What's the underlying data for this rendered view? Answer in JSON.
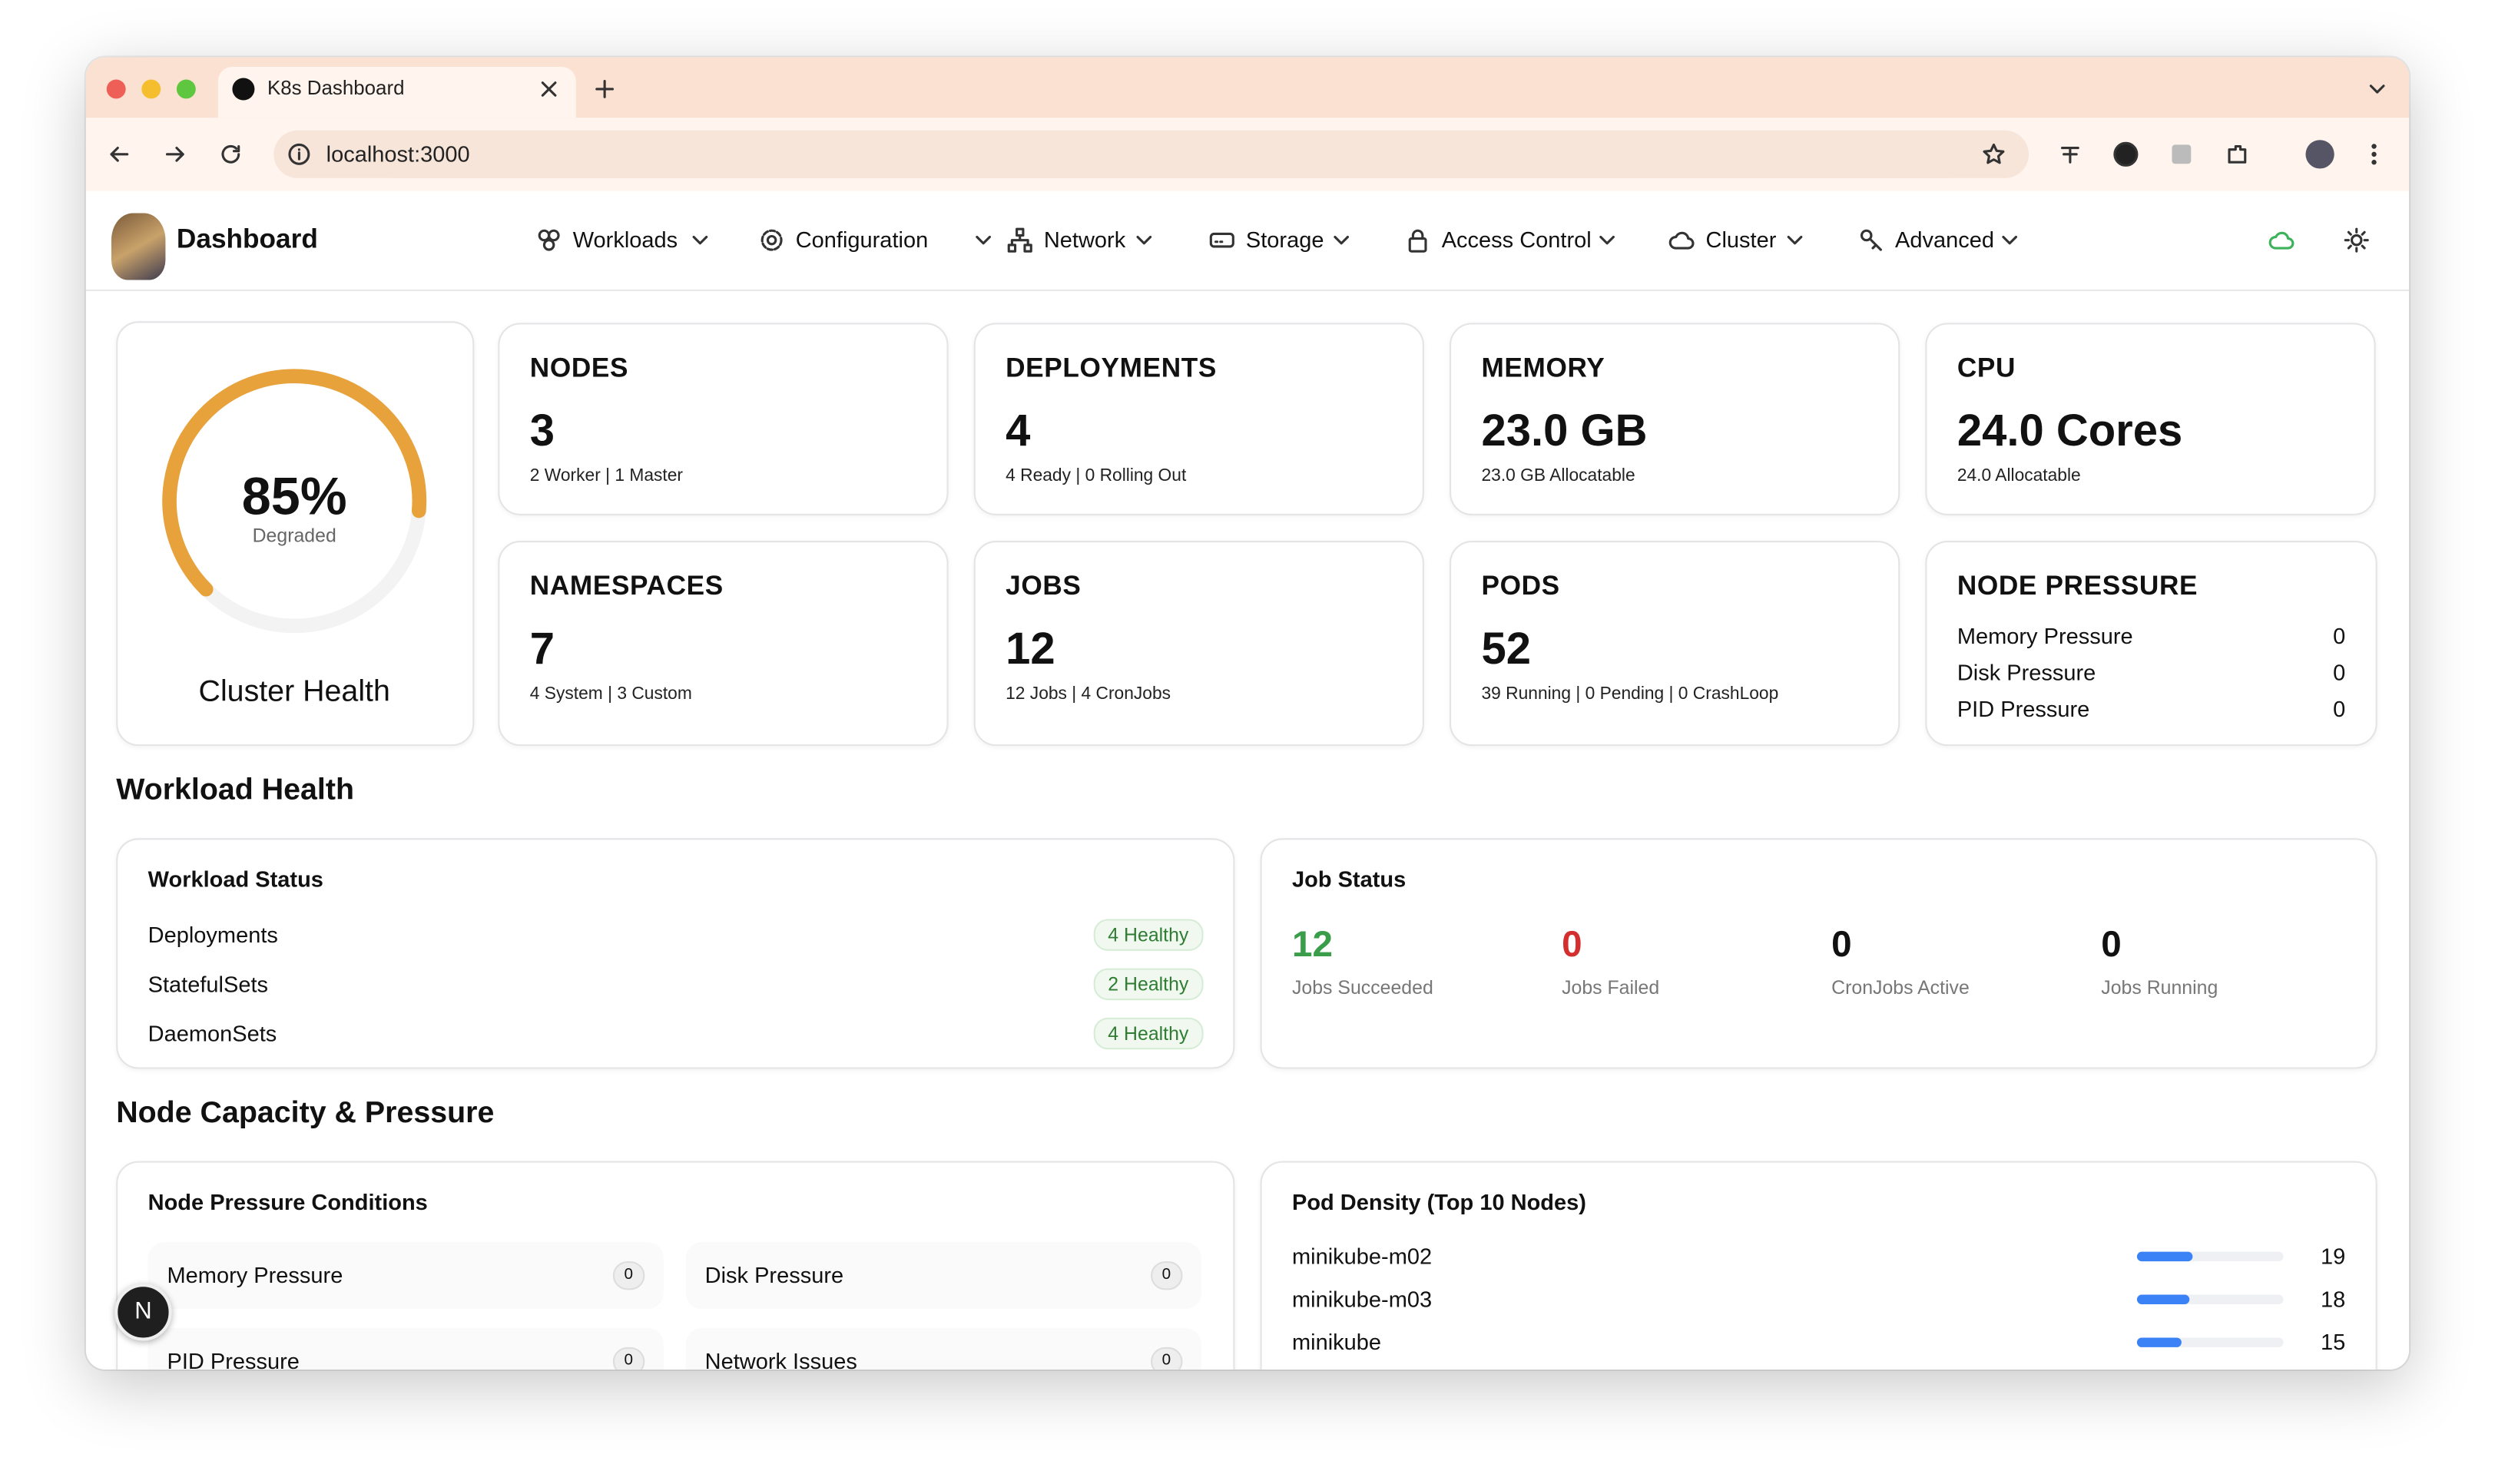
{
  "browser": {
    "tab_title": "K8s Dashboard",
    "url": "localhost:3000"
  },
  "nav": {
    "brand": "Dashboard",
    "menus": [
      "Workloads",
      "Configuration",
      "Network",
      "Storage",
      "Access Control",
      "Cluster",
      "Advanced"
    ]
  },
  "cluster_health": {
    "value": 85,
    "label": "85%",
    "status": "Degraded",
    "title": "Cluster Health"
  },
  "stats": [
    {
      "title": "NODES",
      "value": "3",
      "detail": "2 Worker | 1 Master"
    },
    {
      "title": "DEPLOYMENTS",
      "value": "4",
      "detail": "4 Ready | 0 Rolling Out"
    },
    {
      "title": "MEMORY",
      "value": "23.0 GB",
      "detail": "23.0 GB Allocatable"
    },
    {
      "title": "CPU",
      "value": "24.0 Cores",
      "detail": "24.0 Allocatable"
    },
    {
      "title": "NAMESPACES",
      "value": "7",
      "detail": "4 System | 3 Custom"
    },
    {
      "title": "JOBS",
      "value": "12",
      "detail": "12 Jobs | 4 CronJobs"
    },
    {
      "title": "PODS",
      "value": "52",
      "detail": "39 Running | 0 Pending | 0 CrashLoop"
    }
  ],
  "node_pressure_card": {
    "title": "NODE PRESSURE",
    "rows": [
      {
        "name": "Memory Pressure",
        "value": "0"
      },
      {
        "name": "Disk Pressure",
        "value": "0"
      },
      {
        "name": "PID Pressure",
        "value": "0"
      }
    ]
  },
  "workload_health": {
    "heading": "Workload Health",
    "workload_status": {
      "title": "Workload Status",
      "rows": [
        {
          "name": "Deployments",
          "badge": "4 Healthy"
        },
        {
          "name": "StatefulSets",
          "badge": "2 Healthy"
        },
        {
          "name": "DaemonSets",
          "badge": "4 Healthy"
        }
      ]
    },
    "job_status": {
      "title": "Job Status",
      "items": [
        {
          "value": "12",
          "label": "Jobs Succeeded"
        },
        {
          "value": "0",
          "label": "Jobs Failed"
        },
        {
          "value": "0",
          "label": "CronJobs Active"
        },
        {
          "value": "0",
          "label": "Jobs Running"
        }
      ]
    }
  },
  "node_capacity": {
    "heading": "Node Capacity & Pressure",
    "conditions": {
      "title": "Node Pressure Conditions",
      "items": [
        {
          "name": "Memory Pressure",
          "count": "0"
        },
        {
          "name": "Disk Pressure",
          "count": "0"
        },
        {
          "name": "PID Pressure",
          "count": "0"
        },
        {
          "name": "Network Issues",
          "count": "0"
        }
      ]
    },
    "pod_density": {
      "title": "Pod Density (Top 10 Nodes)",
      "nodes": [
        {
          "name": "minikube-m02",
          "pods": 19
        },
        {
          "name": "minikube-m03",
          "pods": 18
        },
        {
          "name": "minikube",
          "pods": 15
        }
      ]
    }
  },
  "dev_badge": "N"
}
